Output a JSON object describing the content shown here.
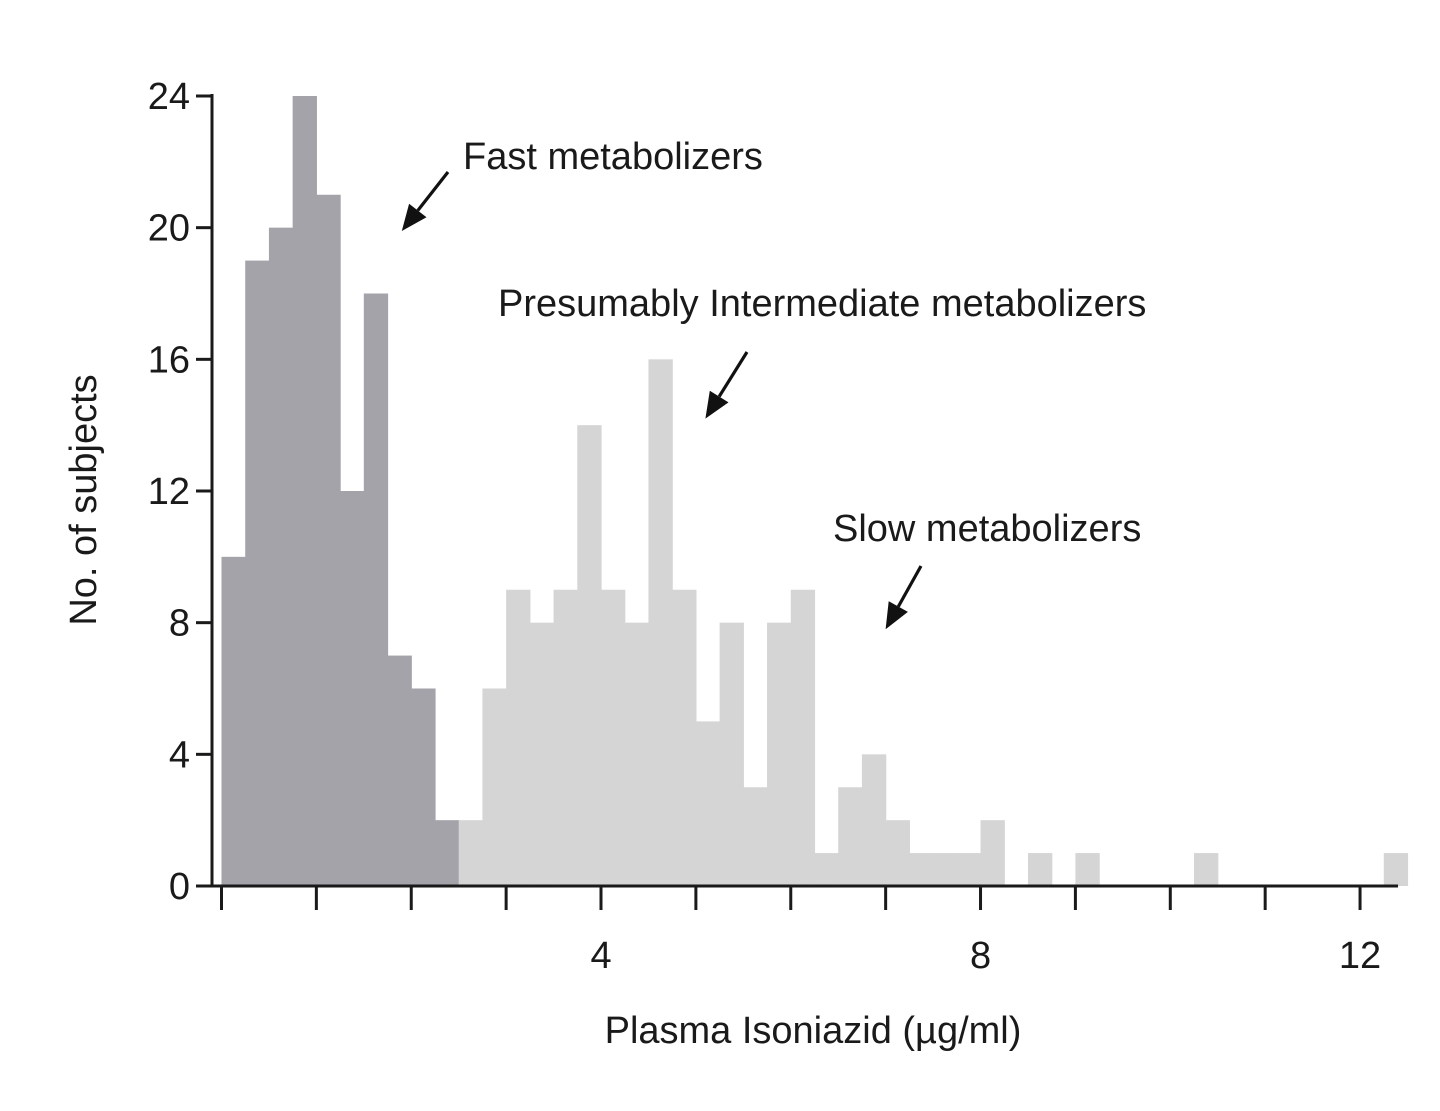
{
  "chart_data": {
    "type": "bar",
    "title": "",
    "xlabel": "Plasma Isoniazid (µg/ml)",
    "ylabel": "No. of subjects",
    "xlim": [
      -0.1,
      12.4
    ],
    "ylim": [
      0,
      24
    ],
    "bin_width": 0.25,
    "x_ticks": [
      4,
      8,
      12
    ],
    "y_ticks": [
      0,
      4,
      8,
      12,
      16,
      20,
      24
    ],
    "grid": false,
    "colors": {
      "fast": "#a3a3a9",
      "intermediate": "#d5d5d5",
      "axis": "#1a1a1a"
    },
    "series": [
      {
        "key": "fast",
        "bins": [
          {
            "x": 0.0,
            "value": 10
          },
          {
            "x": 0.25,
            "value": 19
          },
          {
            "x": 0.5,
            "value": 20
          },
          {
            "x": 0.75,
            "value": 24
          },
          {
            "x": 1.0,
            "value": 21
          },
          {
            "x": 1.25,
            "value": 12
          },
          {
            "x": 1.5,
            "value": 18
          },
          {
            "x": 1.75,
            "value": 7
          },
          {
            "x": 2.0,
            "value": 6
          },
          {
            "x": 2.25,
            "value": 2
          }
        ]
      },
      {
        "key": "intermediate",
        "bins": [
          {
            "x": 2.5,
            "value": 2
          },
          {
            "x": 2.75,
            "value": 6
          },
          {
            "x": 3.0,
            "value": 9
          },
          {
            "x": 3.25,
            "value": 8
          },
          {
            "x": 3.5,
            "value": 9
          },
          {
            "x": 3.75,
            "value": 14
          },
          {
            "x": 4.0,
            "value": 9
          },
          {
            "x": 4.25,
            "value": 8
          },
          {
            "x": 4.5,
            "value": 16
          },
          {
            "x": 4.75,
            "value": 9
          },
          {
            "x": 5.0,
            "value": 5
          },
          {
            "x": 5.25,
            "value": 8
          },
          {
            "x": 5.5,
            "value": 3
          },
          {
            "x": 5.75,
            "value": 8
          },
          {
            "x": 6.0,
            "value": 9
          },
          {
            "x": 6.25,
            "value": 1
          },
          {
            "x": 6.5,
            "value": 3
          },
          {
            "x": 6.75,
            "value": 4
          },
          {
            "x": 7.0,
            "value": 2
          },
          {
            "x": 7.25,
            "value": 1
          },
          {
            "x": 7.5,
            "value": 1
          },
          {
            "x": 7.75,
            "value": 1
          },
          {
            "x": 8.0,
            "value": 2
          },
          {
            "x": 8.5,
            "value": 1
          },
          {
            "x": 9.0,
            "value": 1
          },
          {
            "x": 10.25,
            "value": 1
          },
          {
            "x": 12.25,
            "value": 1
          }
        ]
      }
    ],
    "annotations": [
      {
        "text": "Fast metabolizers",
        "x": 1.9,
        "y": 19.9
      },
      {
        "text": "Presumably Intermediate metabolizers",
        "x": 5.1,
        "y": 14.2
      },
      {
        "text": "Slow metabolizers",
        "x": 7.0,
        "y": 7.8
      }
    ]
  }
}
